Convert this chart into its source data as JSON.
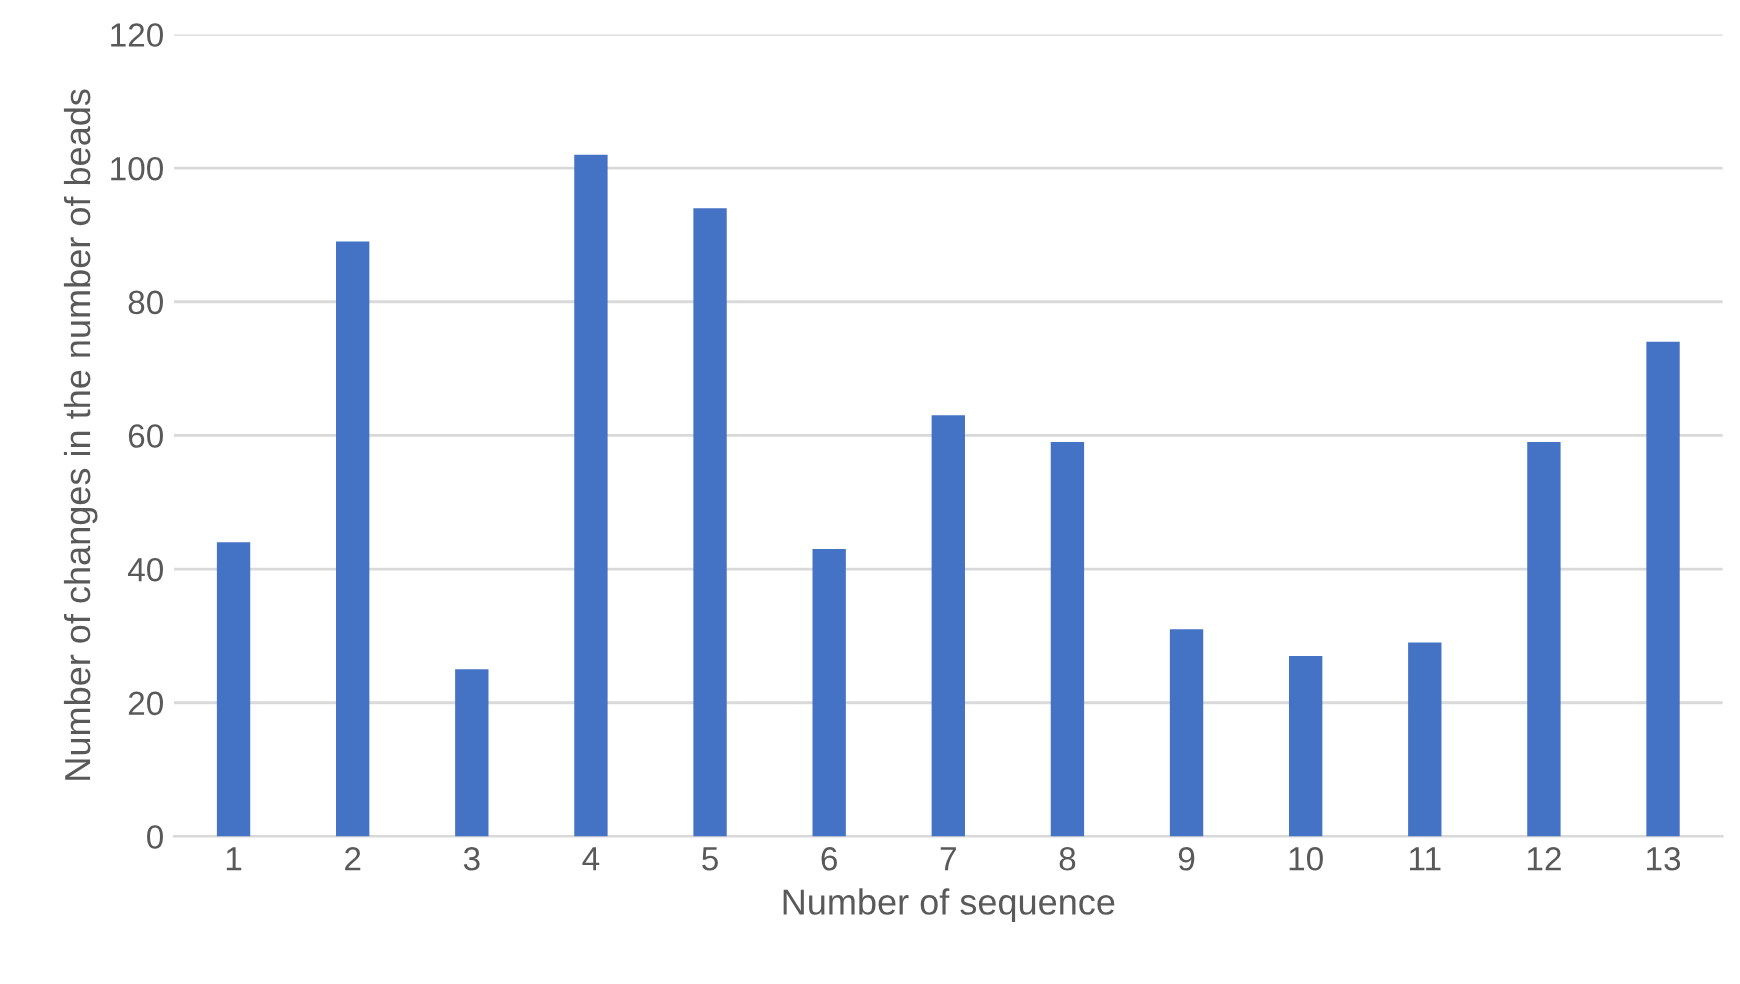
{
  "chart_data": {
    "type": "bar",
    "xlabel": "Number of sequence",
    "ylabel": "Number of changes in the number of beads",
    "categories": [
      "1",
      "2",
      "3",
      "4",
      "5",
      "6",
      "7",
      "8",
      "9",
      "10",
      "11",
      "12",
      "13"
    ],
    "values": [
      44,
      89,
      25,
      102,
      94,
      43,
      63,
      59,
      31,
      27,
      29,
      59,
      74
    ],
    "color": "#4472c4",
    "ylim": [
      0,
      120
    ],
    "yticks": [
      0,
      20,
      40,
      60,
      80,
      100,
      120
    ],
    "grid": "y"
  }
}
